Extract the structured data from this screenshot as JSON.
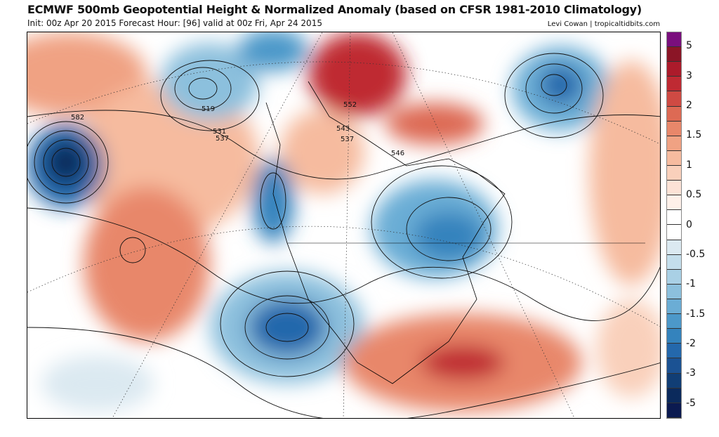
{
  "header": {
    "title": "ECMWF 500mb Geopotential Height & Normalized Anomaly (based on CFSR 1981-2010 Climatology)",
    "subtitle": "Init: 00z Apr 20 2015   Forecast Hour: [96]   valid at 00z Fri, Apr 24 2015",
    "credit": "Levi Cowan | tropicaltidbits.com"
  },
  "colorbar": {
    "colors": [
      "#7a0f7d",
      "#8b1526",
      "#ac1b2b",
      "#bf2a33",
      "#cf4a43",
      "#dd6a54",
      "#e8876a",
      "#f0a283",
      "#f6bb9f",
      "#f9d0bb",
      "#fce2d6",
      "#fef0e9",
      "#ffffff",
      "#ffffff",
      "#dbe9f1",
      "#c4deec",
      "#a9d0e5",
      "#8cc0dd",
      "#6badd5",
      "#4c98c9",
      "#3483bd",
      "#2468ac",
      "#1b5293",
      "#113e75",
      "#0b2a5c",
      "#0b1a50"
    ],
    "labels": [
      "5",
      "3",
      "2",
      "1.5",
      "1",
      "0.5",
      "0",
      "-0.5",
      "-1",
      "-1.5",
      "-2",
      "-3",
      "-5"
    ]
  },
  "map": {
    "contour_labels": [
      "582",
      "519",
      "531",
      "537",
      "552",
      "543",
      "537",
      "546"
    ]
  }
}
